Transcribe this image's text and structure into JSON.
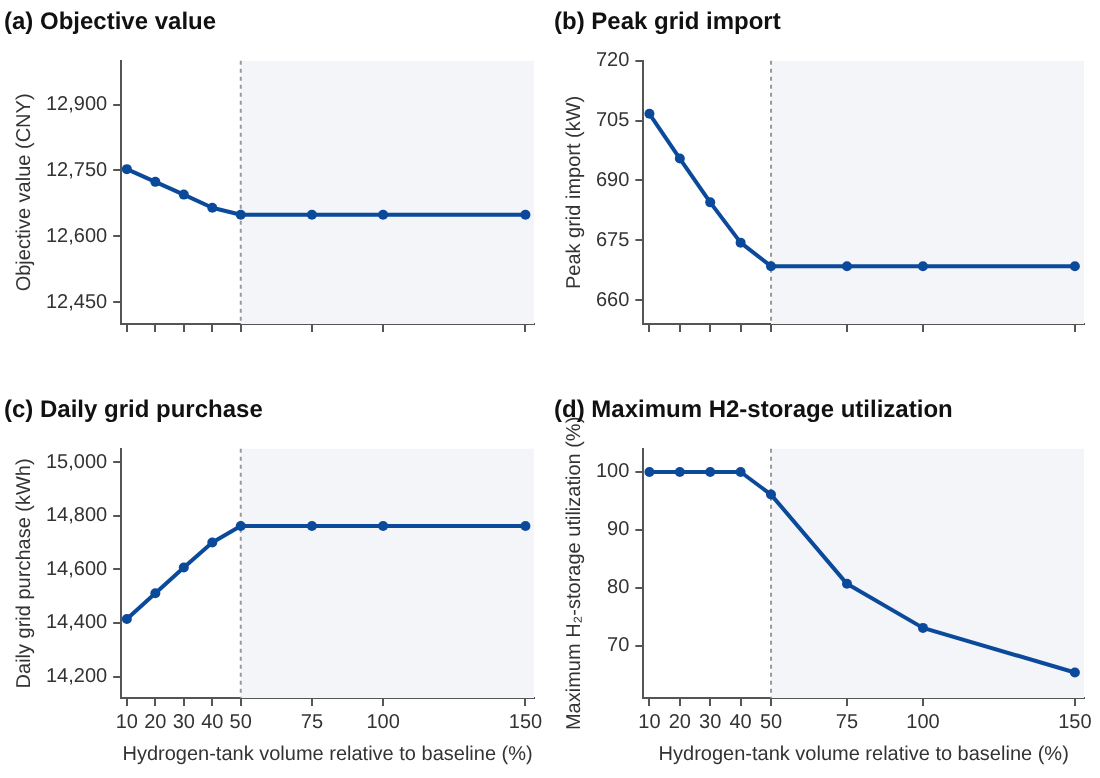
{
  "chart_data": [
    {
      "type": "line",
      "title": "(a) Objective value",
      "ylabel": "Objective value (CNY)",
      "x": [
        10,
        20,
        30,
        40,
        50,
        75,
        100,
        150
      ],
      "series": [
        {
          "color": "#0b4a9a",
          "values": [
            12753,
            12724,
            12695,
            12665,
            12649,
            12649,
            12649,
            12649
          ]
        }
      ],
      "xlim": [
        8,
        153
      ],
      "xticks": [
        {
          "value": 10,
          "label": null
        },
        {
          "value": 20,
          "label": null
        },
        {
          "value": 30,
          "label": null
        },
        {
          "value": 40,
          "label": null
        },
        {
          "value": 50,
          "label": null
        },
        {
          "value": 75,
          "label": null
        },
        {
          "value": 100,
          "label": null
        },
        {
          "value": 150,
          "label": null
        }
      ],
      "ylim": [
        12400,
        13000
      ],
      "yticks": [
        {
          "value": 12450,
          "label": "12,450"
        },
        {
          "value": 12600,
          "label": "12,600"
        },
        {
          "value": 12750,
          "label": "12,750"
        },
        {
          "value": 12900,
          "label": "12,900"
        }
      ],
      "tick_labels": "y",
      "marker": "circle",
      "line_style": "solid",
      "ref_lines": [
        {
          "axis": "x",
          "value": 50,
          "color": "#9a9a9a",
          "line_style": "dotted"
        }
      ],
      "bands": [
        {
          "axis": "x",
          "from": 50,
          "to": 153,
          "color": "#f3f5f9"
        }
      ]
    },
    {
      "type": "line",
      "title": "(b) Peak grid import",
      "ylabel": "Peak grid import (kW)",
      "x": [
        10,
        20,
        30,
        40,
        50,
        75,
        100,
        150
      ],
      "series": [
        {
          "color": "#0b4a9a",
          "values": [
            706.7,
            695.5,
            684.5,
            674.4,
            668.5,
            668.5,
            668.5,
            668.5
          ]
        }
      ],
      "xlim": [
        8,
        153
      ],
      "xticks": [
        {
          "value": 10,
          "label": null
        },
        {
          "value": 20,
          "label": null
        },
        {
          "value": 30,
          "label": null
        },
        {
          "value": 40,
          "label": null
        },
        {
          "value": 50,
          "label": null
        },
        {
          "value": 75,
          "label": null
        },
        {
          "value": 100,
          "label": null
        },
        {
          "value": 150,
          "label": null
        }
      ],
      "ylim": [
        654,
        720
      ],
      "yticks": [
        660,
        675,
        690,
        705,
        720
      ],
      "tick_labels": "y",
      "marker": "circle",
      "line_style": "solid",
      "ref_lines": [
        {
          "axis": "x",
          "value": 50,
          "color": "#9a9a9a",
          "line_style": "dotted"
        }
      ],
      "bands": [
        {
          "axis": "x",
          "from": 50,
          "to": 153,
          "color": "#f3f5f9"
        }
      ]
    },
    {
      "type": "line",
      "title": "(c) Daily grid purchase",
      "ylabel": "Daily grid purchase (kWh)",
      "xlabel": "Hydrogen-tank volume relative to baseline (%)",
      "x": [
        10,
        20,
        30,
        40,
        50,
        75,
        100,
        150
      ],
      "series": [
        {
          "color": "#0b4a9a",
          "values": [
            14415,
            14511,
            14607,
            14700,
            14762,
            14762,
            14762,
            14762
          ]
        }
      ],
      "xlim": [
        8,
        153
      ],
      "xticks": [
        10,
        20,
        30,
        40,
        50,
        75,
        100,
        150
      ],
      "ylim": [
        14120,
        15050
      ],
      "yticks": [
        {
          "value": 14200,
          "label": "14,200"
        },
        {
          "value": 14400,
          "label": "14,400"
        },
        {
          "value": 14600,
          "label": "14,600"
        },
        {
          "value": 14800,
          "label": "14,800"
        },
        {
          "value": 15000,
          "label": "15,000"
        }
      ],
      "marker": "circle",
      "line_style": "solid",
      "ref_lines": [
        {
          "axis": "x",
          "value": 50,
          "color": "#9a9a9a",
          "line_style": "dotted"
        }
      ],
      "bands": [
        {
          "axis": "x",
          "from": 50,
          "to": 153,
          "color": "#f3f5f9"
        }
      ]
    },
    {
      "type": "line",
      "title": "(d) Maximum H2-storage utilization",
      "ylabel": "Maximum H₂-storage utilization (%)",
      "xlabel": "Hydrogen-tank volume relative to baseline (%)",
      "x": [
        10,
        20,
        30,
        40,
        50,
        75,
        100,
        150
      ],
      "series": [
        {
          "color": "#0b4a9a",
          "values": [
            100,
            100,
            100,
            100,
            96.1,
            80.7,
            73.1,
            65.4
          ]
        }
      ],
      "xlim": [
        8,
        153
      ],
      "xticks": [
        10,
        20,
        30,
        40,
        50,
        75,
        100,
        150
      ],
      "ylim": [
        61,
        104
      ],
      "yticks": [
        70,
        80,
        90,
        100
      ],
      "marker": "circle",
      "line_style": "solid",
      "ref_lines": [
        {
          "axis": "x",
          "value": 50,
          "color": "#9a9a9a",
          "line_style": "dotted"
        }
      ],
      "bands": [
        {
          "axis": "x",
          "from": 50,
          "to": 153,
          "color": "#f3f5f9"
        }
      ]
    }
  ]
}
